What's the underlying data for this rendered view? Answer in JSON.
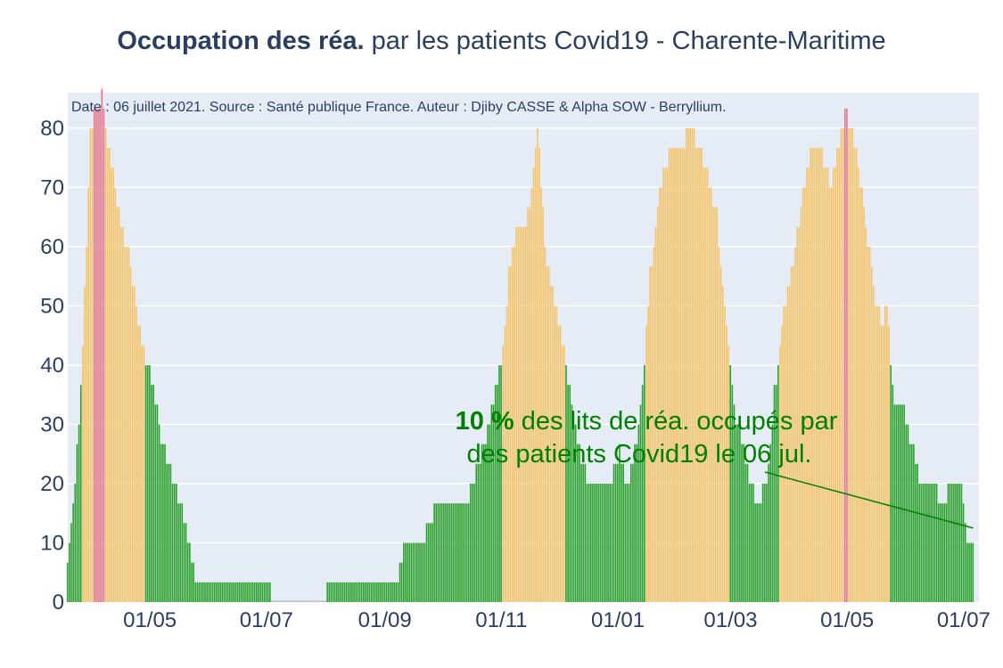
{
  "title": {
    "bold": "Occupation des réa.",
    "rest": " par les patients Covid19 - Charente-Maritime"
  },
  "subtitle": "Date : 06 juillet 2021. Source : Santé publique France. Auteur : Djiby CASSE & Alpha SOW - Berryllium.",
  "annotation": {
    "bold": "10  %",
    "line1_rest": " des lits de réa. occupés par",
    "line2": "des patients Covid19 le 06 jul."
  },
  "colors": {
    "background": "#e5ecf6",
    "grid": "#ffffff",
    "green": "#2ca02c",
    "orange": "#f4c46b",
    "red": "#e8768a",
    "text": "#2a3f5f",
    "annotation": "#008000"
  },
  "chart_data": {
    "type": "bar",
    "title": "Occupation des réa. par les patients Covid19 - Charente-Maritime",
    "xlabel": "",
    "ylabel": "",
    "ylim": [
      0,
      86
    ],
    "y_ticks": [
      "0",
      "10",
      "20",
      "30",
      "40",
      "50",
      "60",
      "70",
      "80"
    ],
    "x_ticks": [
      "01/05",
      "01/07",
      "01/09",
      "01/11",
      "01/01",
      "01/03",
      "01/05",
      "01/07"
    ],
    "x_range": [
      "2020-03-19",
      "2021-07-09"
    ],
    "x_tick_dates": [
      "2020-05-01",
      "2020-07-01",
      "2020-09-01",
      "2020-11-01",
      "2021-01-01",
      "2021-03-01",
      "2021-05-01",
      "2021-07-01"
    ],
    "grid": true,
    "legend": "none",
    "color_rule": "green below 40%, orange 40–80%, red 80% and above",
    "keyframes": [
      [
        "2020-03-19",
        7
      ],
      [
        "2020-03-23",
        20
      ],
      [
        "2020-03-27",
        43
      ],
      [
        "2020-03-31",
        80
      ],
      [
        "2020-04-02",
        83
      ],
      [
        "2020-04-06",
        85
      ],
      [
        "2020-04-09",
        77
      ],
      [
        "2020-04-13",
        70
      ],
      [
        "2020-04-17",
        63
      ],
      [
        "2020-04-21",
        57
      ],
      [
        "2020-04-25",
        47
      ],
      [
        "2020-04-29",
        40
      ],
      [
        "2020-05-03",
        37
      ],
      [
        "2020-05-07",
        27
      ],
      [
        "2020-05-12",
        23
      ],
      [
        "2020-05-16",
        17
      ],
      [
        "2020-05-20",
        13
      ],
      [
        "2020-05-23",
        7
      ],
      [
        "2020-05-26",
        3
      ],
      [
        "2020-07-03",
        3
      ],
      [
        "2020-07-04",
        0
      ],
      [
        "2020-08-01",
        0
      ],
      [
        "2020-08-02",
        3
      ],
      [
        "2020-09-08",
        3
      ],
      [
        "2020-09-11",
        10
      ],
      [
        "2020-09-20",
        10
      ],
      [
        "2020-09-25",
        14
      ],
      [
        "2020-10-01",
        17
      ],
      [
        "2020-10-08",
        15
      ],
      [
        "2020-10-15",
        18
      ],
      [
        "2020-10-20",
        23
      ],
      [
        "2020-10-26",
        30
      ],
      [
        "2020-11-01",
        40
      ],
      [
        "2020-11-05",
        55
      ],
      [
        "2020-11-09",
        63
      ],
      [
        "2020-11-15",
        65
      ],
      [
        "2020-11-20",
        80
      ],
      [
        "2020-11-25",
        57
      ],
      [
        "2020-11-30",
        50
      ],
      [
        "2020-12-05",
        40
      ],
      [
        "2020-12-09",
        30
      ],
      [
        "2020-12-14",
        22
      ],
      [
        "2020-12-20",
        20
      ],
      [
        "2020-12-28",
        20
      ],
      [
        "2021-01-02",
        25
      ],
      [
        "2021-01-06",
        20
      ],
      [
        "2021-01-10",
        25
      ],
      [
        "2021-01-14",
        35
      ],
      [
        "2021-01-18",
        55
      ],
      [
        "2021-01-23",
        70
      ],
      [
        "2021-01-28",
        75
      ],
      [
        "2021-02-03",
        77
      ],
      [
        "2021-02-08",
        80
      ],
      [
        "2021-02-12",
        77
      ],
      [
        "2021-02-17",
        73
      ],
      [
        "2021-02-22",
        65
      ],
      [
        "2021-02-27",
        47
      ],
      [
        "2021-03-03",
        33
      ],
      [
        "2021-03-07",
        27
      ],
      [
        "2021-03-11",
        20
      ],
      [
        "2021-03-15",
        17
      ],
      [
        "2021-03-20",
        20
      ],
      [
        "2021-03-24",
        35
      ],
      [
        "2021-03-29",
        50
      ],
      [
        "2021-04-03",
        57
      ],
      [
        "2021-04-08",
        70
      ],
      [
        "2021-04-13",
        77
      ],
      [
        "2021-04-18",
        75
      ],
      [
        "2021-04-23",
        70
      ],
      [
        "2021-04-28",
        80
      ],
      [
        "2021-05-01",
        83
      ],
      [
        "2021-05-05",
        77
      ],
      [
        "2021-05-10",
        67
      ],
      [
        "2021-05-15",
        53
      ],
      [
        "2021-05-19",
        47
      ],
      [
        "2021-05-22",
        50
      ],
      [
        "2021-05-25",
        35
      ],
      [
        "2021-05-30",
        33
      ],
      [
        "2021-06-04",
        27
      ],
      [
        "2021-06-09",
        20
      ],
      [
        "2021-06-15",
        20
      ],
      [
        "2021-06-20",
        17
      ],
      [
        "2021-06-25",
        20
      ],
      [
        "2021-06-30",
        20
      ],
      [
        "2021-07-03",
        10
      ],
      [
        "2021-07-06",
        10
      ]
    ],
    "final_value_pct": 10,
    "annotation_arrow_to": [
      "2021-07-06",
      12.5
    ]
  }
}
